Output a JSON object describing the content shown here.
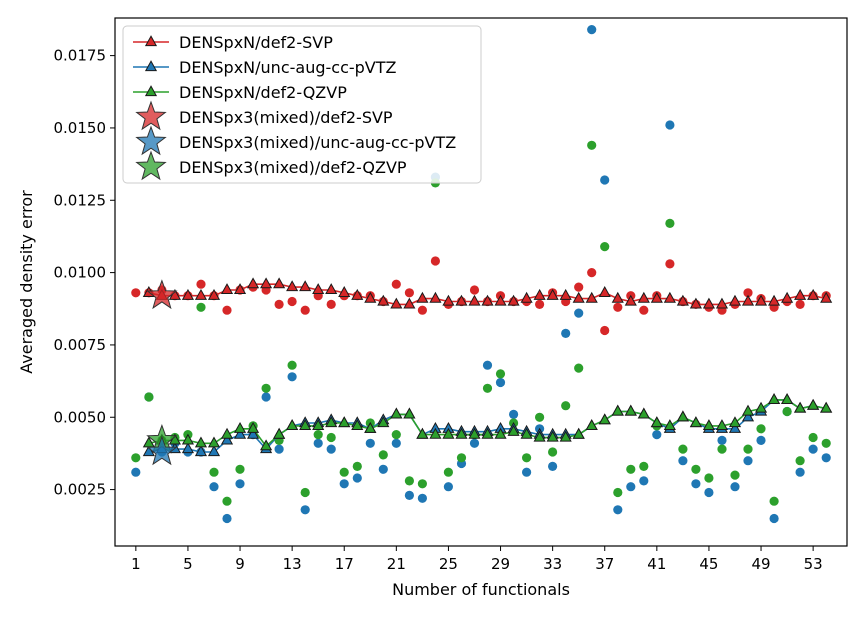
{
  "chart_data": {
    "type": "scatter",
    "xlabel": "Number of functionals",
    "ylabel": "Averaged density error",
    "xlim": [
      -0.6,
      55.6
    ],
    "ylim": [
      0.00055,
      0.0188
    ],
    "xticks": [
      1,
      5,
      9,
      13,
      17,
      21,
      25,
      29,
      33,
      37,
      41,
      45,
      49,
      53
    ],
    "yticks": [
      0.0025,
      0.005,
      0.0075,
      0.01,
      0.0125,
      0.015,
      0.0175
    ],
    "ytick_labels": [
      "0.0025",
      "0.0050",
      "0.0075",
      "0.0100",
      "0.0125",
      "0.0150",
      "0.0175"
    ],
    "grid": false,
    "legend_position": "top-left",
    "colors": {
      "red": "#d62728",
      "blue": "#1f77b4",
      "green": "#2ca02c"
    },
    "legend": [
      {
        "label": "DENSpxN/def2-SVP",
        "color": "#d62728",
        "marker": "line-triangle"
      },
      {
        "label": "DENSpxN/unc-aug-cc-pVTZ",
        "color": "#1f77b4",
        "marker": "line-triangle"
      },
      {
        "label": "DENSpxN/def2-QZVP",
        "color": "#2ca02c",
        "marker": "line-triangle"
      },
      {
        "label": "DENSpx3(mixed)/def2-SVP",
        "color": "#d62728",
        "marker": "star"
      },
      {
        "label": "DENSpx3(mixed)/unc-aug-cc-pVTZ",
        "color": "#1f77b4",
        "marker": "star"
      },
      {
        "label": "DENSpx3(mixed)/def2-QZVP",
        "color": "#2ca02c",
        "marker": "star"
      }
    ],
    "x": [
      1,
      2,
      3,
      4,
      5,
      6,
      7,
      8,
      9,
      10,
      11,
      12,
      13,
      14,
      15,
      16,
      17,
      18,
      19,
      20,
      21,
      22,
      23,
      24,
      25,
      26,
      27,
      28,
      29,
      30,
      31,
      32,
      33,
      34,
      35,
      36,
      37,
      38,
      39,
      40,
      41,
      42,
      43,
      44,
      45,
      46,
      47,
      48,
      49,
      50,
      51,
      52,
      53,
      54
    ],
    "line_x": [
      2,
      3,
      4,
      5,
      6,
      7,
      8,
      9,
      10,
      11,
      12,
      13,
      14,
      15,
      16,
      17,
      18,
      19,
      20,
      21,
      22,
      23,
      24,
      25,
      26,
      27,
      28,
      29,
      30,
      31,
      32,
      33,
      34,
      35,
      36,
      37,
      38,
      39,
      40,
      41,
      42,
      43,
      44,
      45,
      46,
      47,
      48,
      49,
      50,
      51,
      52,
      53,
      54
    ],
    "series": [
      {
        "name": "DENSpxN/def2-SVP",
        "color": "#d62728",
        "line": [
          0.0093,
          0.0092,
          0.0092,
          0.0092,
          0.0092,
          0.0092,
          0.0094,
          0.0094,
          0.0096,
          0.0096,
          0.0096,
          0.0095,
          0.0095,
          0.0094,
          0.0094,
          0.0093,
          0.0092,
          0.0091,
          0.009,
          0.0089,
          0.0089,
          0.0091,
          0.0091,
          0.009,
          0.009,
          0.009,
          0.009,
          0.009,
          0.009,
          0.0091,
          0.0092,
          0.0092,
          0.0092,
          0.0091,
          0.0091,
          0.0093,
          0.0091,
          0.009,
          0.0091,
          0.0091,
          0.0091,
          0.009,
          0.0089,
          0.0089,
          0.0089,
          0.009,
          0.009,
          0.009,
          0.009,
          0.0091,
          0.0092,
          0.0092,
          0.0091
        ],
        "points": [
          0.0093,
          0.0093,
          0.0094,
          0.0092,
          0.0092,
          0.0096,
          0.0092,
          0.0087,
          0.0094,
          0.0095,
          0.0094,
          0.0089,
          0.009,
          0.0087,
          0.0092,
          0.0089,
          0.0092,
          0.0092,
          0.0092,
          0.009,
          0.0096,
          0.0093,
          0.0087,
          0.0104,
          0.0089,
          0.009,
          0.0094,
          0.009,
          0.0092,
          0.009,
          0.009,
          0.0089,
          0.0093,
          0.009,
          0.0095,
          0.01,
          0.008,
          0.0088,
          0.0092,
          0.0087,
          0.0092,
          0.0103,
          0.009,
          0.0089,
          0.0088,
          0.0087,
          0.0089,
          0.0093,
          0.0091,
          0.0088,
          0.009,
          0.0089,
          0.0092,
          0.0092
        ]
      },
      {
        "name": "DENSpxN/unc-aug-cc-pVTZ",
        "color": "#1f77b4",
        "line": [
          0.0038,
          0.0039,
          0.0039,
          0.0039,
          0.0038,
          0.0038,
          0.0042,
          0.0044,
          0.0044,
          0.0039,
          0.0044,
          0.0047,
          0.0048,
          0.0048,
          0.0049,
          0.0048,
          0.0048,
          0.0046,
          0.0049,
          0.0051,
          0.0051,
          0.0044,
          0.0046,
          0.0046,
          0.0045,
          0.0045,
          0.0045,
          0.0046,
          0.0046,
          0.0045,
          0.0044,
          0.0044,
          0.0044,
          0.0044,
          0.0047,
          0.0049,
          0.0052,
          0.0052,
          0.0051,
          0.0048,
          0.0046,
          0.005,
          0.0048,
          0.0046,
          0.0046,
          0.0046,
          0.005,
          0.0052,
          0.0056,
          0.0056,
          0.0053,
          0.0054,
          0.0053
        ],
        "points": [
          0.0031,
          0.0057,
          0.0038,
          0.0041,
          0.0038,
          0.0038,
          0.0026,
          0.0015,
          0.0027,
          0.0044,
          0.0057,
          0.0039,
          0.0064,
          0.0018,
          0.0041,
          0.0039,
          0.0027,
          0.0029,
          0.0041,
          0.0032,
          0.0041,
          0.0023,
          0.0022,
          0.0133,
          0.0026,
          0.0034,
          0.0041,
          0.0068,
          0.0062,
          0.0051,
          0.0031,
          0.0046,
          0.0033,
          0.0079,
          0.0086,
          0.0184,
          0.0132,
          0.0018,
          0.0026,
          0.0028,
          0.0044,
          0.0151,
          0.0035,
          0.0027,
          0.0024,
          0.0042,
          0.0026,
          0.0035,
          0.0042,
          0.0015,
          0.0052,
          0.0031,
          0.0039,
          0.0036
        ]
      },
      {
        "name": "DENSpxN/def2-QZVP",
        "color": "#2ca02c",
        "line": [
          0.0041,
          0.0042,
          0.0042,
          0.0042,
          0.0041,
          0.0041,
          0.0044,
          0.0046,
          0.0046,
          0.004,
          0.0044,
          0.0047,
          0.0047,
          0.0047,
          0.0048,
          0.0048,
          0.0047,
          0.0046,
          0.0048,
          0.0051,
          0.0051,
          0.0044,
          0.0044,
          0.0044,
          0.0044,
          0.0044,
          0.0044,
          0.0044,
          0.0045,
          0.0044,
          0.0043,
          0.0043,
          0.0043,
          0.0044,
          0.0047,
          0.0049,
          0.0052,
          0.0052,
          0.0051,
          0.0048,
          0.0047,
          0.005,
          0.0048,
          0.0047,
          0.0047,
          0.0048,
          0.0052,
          0.0053,
          0.0056,
          0.0056,
          0.0053,
          0.0054,
          0.0053
        ],
        "points": [
          0.0036,
          0.0057,
          0.0042,
          0.0043,
          0.0044,
          0.0088,
          0.0031,
          0.0021,
          0.0032,
          0.0047,
          0.006,
          0.0042,
          0.0068,
          0.0024,
          0.0044,
          0.0043,
          0.0031,
          0.0033,
          0.0048,
          0.0037,
          0.0044,
          0.0028,
          0.0027,
          0.0131,
          0.0031,
          0.0036,
          0.0044,
          0.006,
          0.0065,
          0.0048,
          0.0036,
          0.005,
          0.0038,
          0.0054,
          0.0067,
          0.0144,
          0.0109,
          0.0024,
          0.0032,
          0.0033,
          0.0047,
          0.0117,
          0.0039,
          0.0032,
          0.0029,
          0.0039,
          0.003,
          0.0039,
          0.0046,
          0.0021,
          0.0052,
          0.0035,
          0.0043,
          0.0041
        ]
      }
    ],
    "stars": [
      {
        "name": "DENSpx3(mixed)/def2-SVP",
        "color": "#d62728",
        "x": 3,
        "y": 0.0092
      },
      {
        "name": "DENSpx3(mixed)/def2-QZVP",
        "color": "#2ca02c",
        "x": 3,
        "y": 0.0042
      },
      {
        "name": "DENSpx3(mixed)/unc-aug-cc-pVTZ",
        "color": "#1f77b4",
        "x": 3,
        "y": 0.0038
      }
    ]
  }
}
